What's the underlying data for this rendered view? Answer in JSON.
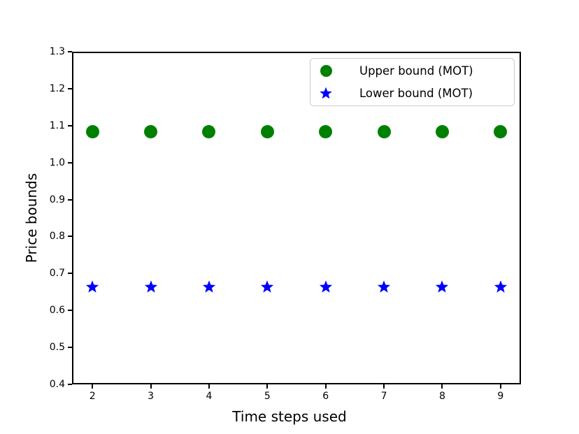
{
  "figure": {
    "background": "#ffffff"
  },
  "colors": {
    "axis": "#000000",
    "text": "#000000",
    "legend_border": "#cccccc",
    "upper_bound": "#008000",
    "lower_bound": "#0000ff"
  },
  "chart_data": {
    "type": "scatter",
    "title": "",
    "xlabel": "Time steps used",
    "ylabel": "Price bounds",
    "x": [
      2,
      3,
      4,
      5,
      6,
      7,
      8,
      9
    ],
    "series": [
      {
        "name": "Upper bound (MOT)",
        "marker": "circle",
        "color": "#008000",
        "values": [
          1.083,
          1.083,
          1.083,
          1.083,
          1.083,
          1.083,
          1.083,
          1.083
        ]
      },
      {
        "name": "Lower bound (MOT)",
        "marker": "star",
        "color": "#0000ff",
        "values": [
          0.665,
          0.665,
          0.665,
          0.665,
          0.665,
          0.665,
          0.665,
          0.665
        ]
      }
    ],
    "xlim": [
      1.65,
      9.35
    ],
    "ylim": [
      0.4,
      1.3
    ],
    "x_tick_values": [
      2,
      3,
      4,
      5,
      6,
      7,
      8,
      9
    ],
    "x_tick_labels": [
      "2",
      "3",
      "4",
      "5",
      "6",
      "7",
      "8",
      "9"
    ],
    "y_tick_values": [
      0.4,
      0.5,
      0.6,
      0.7,
      0.8,
      0.9,
      1.0,
      1.1,
      1.2,
      1.3
    ],
    "y_tick_labels": [
      "0.4",
      "0.5",
      "0.6",
      "0.7",
      "0.8",
      "0.9",
      "1.0",
      "1.1",
      "1.2",
      "1.3"
    ],
    "grid": false,
    "legend_position": "upper right"
  }
}
